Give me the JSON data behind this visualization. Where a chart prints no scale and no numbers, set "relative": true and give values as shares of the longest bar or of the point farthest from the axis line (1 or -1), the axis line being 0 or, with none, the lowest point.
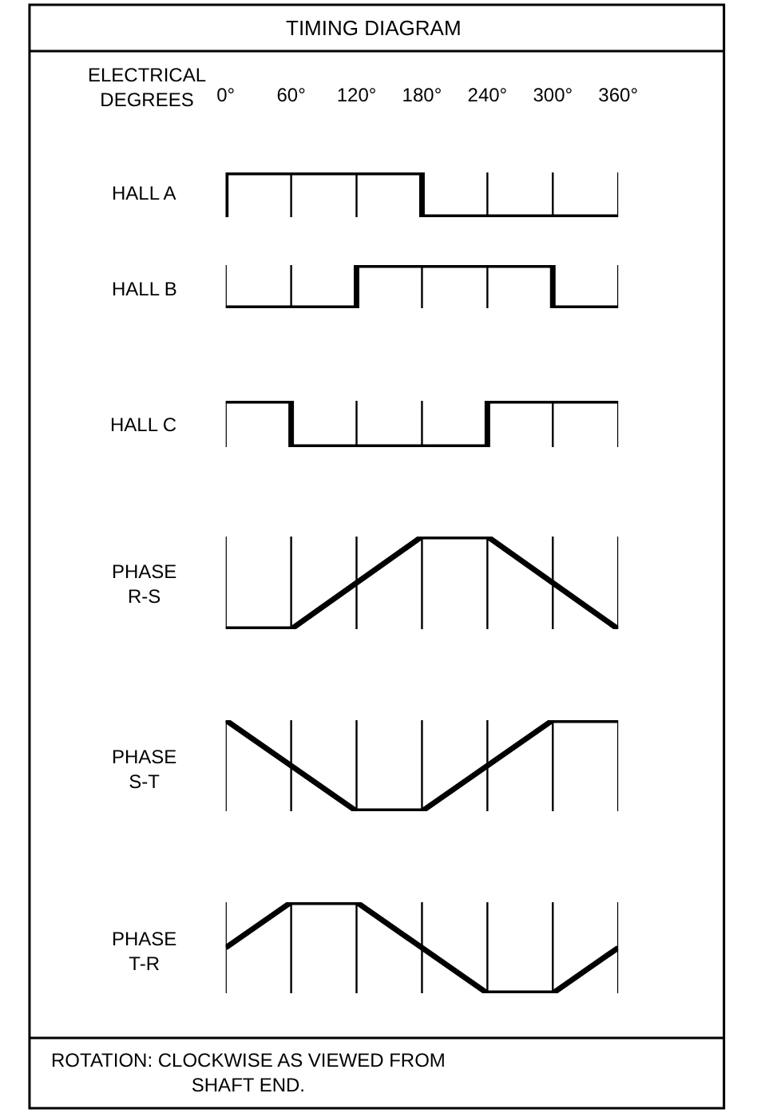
{
  "chart_data": [
    {
      "type": "line",
      "title": "TIMING DIAGRAM",
      "xlabel": "ELECTRICAL\nDEGREES",
      "ylabel": "HALL A",
      "relative": true,
      "grid": "x",
      "legend": false,
      "marker": "none",
      "line_style": "solid",
      "tick_labels": "x",
      "xlim": [
        0,
        360
      ],
      "xticks": [
        {
          "value": 0,
          "label": "0°"
        },
        {
          "value": 60,
          "label": "60°"
        },
        {
          "value": 120,
          "label": "120°"
        },
        {
          "value": 180,
          "label": "180°"
        },
        {
          "value": 240,
          "label": "240°"
        },
        {
          "value": 300,
          "label": "300°"
        },
        {
          "value": 360,
          "label": "360°"
        }
      ],
      "series": [
        {
          "color": "#000000",
          "x": [
            0,
            0,
            180,
            180,
            360
          ],
          "values": [
            0,
            1,
            1,
            0,
            0
          ]
        }
      ]
    },
    {
      "type": "line",
      "ylabel": "HALL B",
      "relative": true,
      "grid": "x",
      "legend": false,
      "marker": "none",
      "line_style": "solid",
      "tick_labels": false,
      "xlim": [
        0,
        360
      ],
      "xticks": [
        {
          "value": 0,
          "label": null
        },
        {
          "value": 60,
          "label": null
        },
        {
          "value": 120,
          "label": null
        },
        {
          "value": 180,
          "label": null
        },
        {
          "value": 240,
          "label": null
        },
        {
          "value": 300,
          "label": null
        },
        {
          "value": 360,
          "label": null
        }
      ],
      "series": [
        {
          "color": "#000000",
          "x": [
            0,
            120,
            120,
            300,
            300,
            360
          ],
          "values": [
            0,
            0,
            1,
            1,
            0,
            0
          ]
        }
      ]
    },
    {
      "type": "line",
      "ylabel": "HALL C",
      "relative": true,
      "grid": "x",
      "legend": false,
      "marker": "none",
      "line_style": "solid",
      "tick_labels": false,
      "xlim": [
        0,
        360
      ],
      "xticks": [
        {
          "value": 0,
          "label": null
        },
        {
          "value": 60,
          "label": null
        },
        {
          "value": 120,
          "label": null
        },
        {
          "value": 180,
          "label": null
        },
        {
          "value": 240,
          "label": null
        },
        {
          "value": 300,
          "label": null
        },
        {
          "value": 360,
          "label": null
        }
      ],
      "series": [
        {
          "color": "#000000",
          "x": [
            0,
            60,
            60,
            240,
            240,
            360
          ],
          "values": [
            1,
            1,
            0,
            0,
            1,
            1
          ]
        }
      ]
    },
    {
      "type": "line",
      "ylabel": "PHASE\nR-S",
      "relative": true,
      "grid": "x",
      "legend": false,
      "marker": "none",
      "line_style": "solid",
      "tick_labels": false,
      "xlim": [
        0,
        360
      ],
      "xticks": [
        {
          "value": 0,
          "label": null
        },
        {
          "value": 60,
          "label": null
        },
        {
          "value": 120,
          "label": null
        },
        {
          "value": 180,
          "label": null
        },
        {
          "value": 240,
          "label": null
        },
        {
          "value": 300,
          "label": null
        },
        {
          "value": 360,
          "label": null
        }
      ],
      "series": [
        {
          "color": "#000000",
          "x": [
            0,
            60,
            180,
            240,
            360
          ],
          "values": [
            0,
            0,
            1,
            1,
            0
          ]
        }
      ]
    },
    {
      "type": "line",
      "ylabel": "PHASE\nS-T",
      "relative": true,
      "grid": "x",
      "legend": false,
      "marker": "none",
      "line_style": "solid",
      "tick_labels": false,
      "xlim": [
        0,
        360
      ],
      "xticks": [
        {
          "value": 0,
          "label": null
        },
        {
          "value": 60,
          "label": null
        },
        {
          "value": 120,
          "label": null
        },
        {
          "value": 180,
          "label": null
        },
        {
          "value": 240,
          "label": null
        },
        {
          "value": 300,
          "label": null
        },
        {
          "value": 360,
          "label": null
        }
      ],
      "series": [
        {
          "color": "#000000",
          "x": [
            0,
            120,
            180,
            300,
            360
          ],
          "values": [
            1,
            0,
            0,
            1,
            1
          ]
        }
      ]
    },
    {
      "type": "line",
      "ylabel": "PHASE\nT-R",
      "relative": true,
      "grid": "x",
      "legend": false,
      "marker": "none",
      "line_style": "solid",
      "tick_labels": false,
      "xlim": [
        0,
        360
      ],
      "xticks": [
        {
          "value": 0,
          "label": null
        },
        {
          "value": 60,
          "label": null
        },
        {
          "value": 120,
          "label": null
        },
        {
          "value": 180,
          "label": null
        },
        {
          "value": 240,
          "label": null
        },
        {
          "value": 300,
          "label": null
        },
        {
          "value": 360,
          "label": null
        }
      ],
      "annotations": [
        "ROTATION: CLOCKWISE AS VIEWED FROM\nSHAFT END."
      ],
      "series": [
        {
          "color": "#000000",
          "x": [
            0,
            60,
            120,
            240,
            300,
            360
          ],
          "values": [
            0.5,
            1,
            1,
            0,
            0,
            0.5
          ]
        }
      ]
    }
  ]
}
